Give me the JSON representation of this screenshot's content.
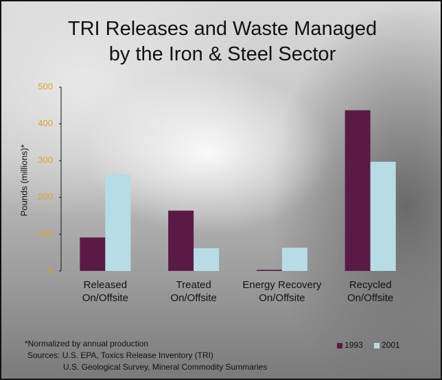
{
  "chart_data": {
    "type": "bar",
    "title": "TRI Releases and Waste Managed\nby the Iron & Steel Sector",
    "y_label": "Pounds (millions)*",
    "categories": [
      "Released\nOn/Offsite",
      "Treated\nOn/Offsite",
      "Energy Recovery\nOn/Offsite",
      "Recycled\nOn/Offsite"
    ],
    "series": [
      {
        "name": "1993",
        "color": "#5a1a46",
        "values": [
          91,
          164,
          3,
          437
        ]
      },
      {
        "name": "2001",
        "color": "#b8dce6",
        "values": [
          263,
          62,
          63,
          297
        ]
      }
    ],
    "ylim": [
      0,
      500
    ],
    "yticks": [
      0,
      100,
      200,
      300,
      400,
      500
    ],
    "tick_color": "#e0a030",
    "notes": [
      "*Normalized by annual production",
      "Sources: U.S. EPA, Toxics Release Inventory (TRI)",
      "U.S. Geological Survey, Mineral Commodity Summaries"
    ]
  }
}
